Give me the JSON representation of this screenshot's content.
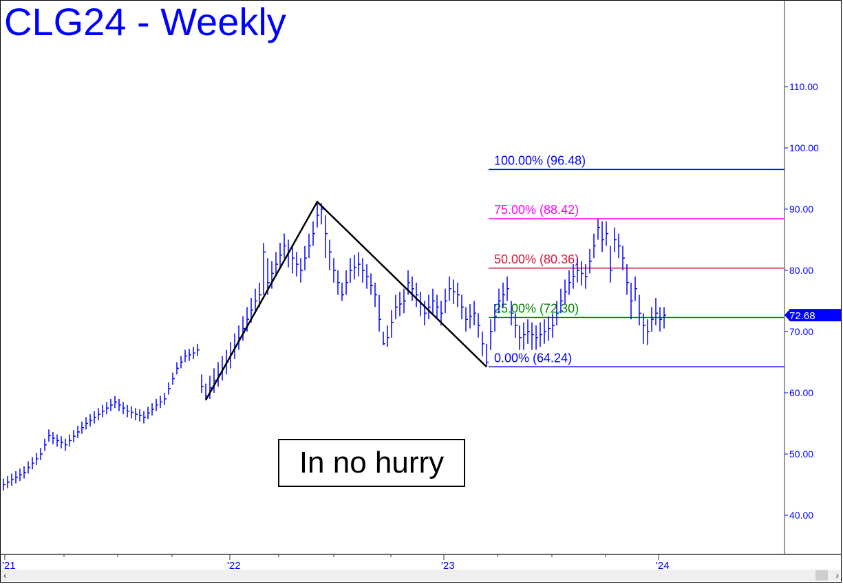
{
  "title": "CLG24 - Weekly",
  "annotation": "In no hurry",
  "chart_data": {
    "type": "ohlc-bar",
    "title": "CLG24 - Weekly",
    "interval": "weekly",
    "ylim": [
      35,
      120
    ],
    "y_ticks": [
      "40.00",
      "50.00",
      "60.00",
      "70.00",
      "80.00",
      "90.00",
      "100.00",
      "110.00"
    ],
    "x_ticks": [
      "'21",
      "'22",
      "'23",
      "'24"
    ],
    "bar_color": "#0000ff",
    "last_price": "72.68",
    "close": [
      45,
      45.4,
      45.8,
      46.2,
      46.6,
      47,
      47.8,
      48.5,
      49.2,
      50,
      51.5,
      53,
      52.6,
      52.2,
      51.9,
      51.5,
      52.2,
      52.9,
      53.6,
      54.3,
      55,
      55.5,
      56,
      56.5,
      57,
      57.5,
      58,
      58.5,
      58,
      57.5,
      57,
      56.8,
      56.5,
      56.3,
      56,
      56.7,
      57.3,
      58,
      58.5,
      59,
      60.7,
      62.3,
      64,
      65,
      66,
      66.2,
      66.5,
      67,
      61,
      59.5,
      60.8,
      62,
      63,
      64,
      65,
      66.3,
      67.7,
      69,
      70.5,
      72,
      73.5,
      75,
      76,
      83,
      78,
      79.5,
      81,
      82.5,
      84,
      83,
      82,
      81,
      80,
      82,
      84,
      86,
      89,
      90,
      86,
      83,
      80,
      78,
      76,
      78,
      80,
      80.5,
      81,
      80,
      79,
      77.5,
      76,
      72,
      68,
      69,
      71.5,
      74,
      74.5,
      75,
      78,
      77,
      76,
      74.5,
      73,
      74,
      75,
      74,
      73,
      75,
      77,
      76.5,
      76,
      74,
      72,
      72.5,
      73,
      71,
      68,
      65,
      70,
      72.5,
      75,
      76,
      77,
      73,
      71,
      69,
      69.5,
      70,
      69.5,
      69,
      69.5,
      70,
      70.5,
      71,
      73,
      75,
      76.5,
      78,
      79,
      80,
      79.5,
      79,
      81.5,
      84,
      87,
      85,
      86,
      80,
      85,
      84,
      82,
      78,
      75,
      77,
      73,
      71,
      70,
      72,
      73,
      72,
      72.68
    ],
    "high": [
      46,
      46.4,
      46.8,
      47.2,
      47.6,
      48,
      48.8,
      49.5,
      50.2,
      51,
      52.5,
      54,
      53.6,
      53.2,
      52.9,
      52.5,
      53.2,
      53.9,
      54.6,
      55.3,
      56,
      56.5,
      57,
      57.5,
      58,
      58.5,
      59,
      59.5,
      59,
      58.5,
      58,
      57.8,
      57.5,
      57.3,
      57,
      57.7,
      58.3,
      59,
      59.5,
      60,
      61.7,
      63.3,
      65,
      66,
      67,
      67.2,
      67.5,
      68,
      63,
      61.5,
      62.8,
      64,
      65,
      66,
      67,
      68.3,
      69.7,
      71,
      72.5,
      74,
      75.5,
      77,
      78,
      84.5,
      82,
      81.5,
      83,
      84.5,
      86,
      85,
      84,
      83,
      82,
      84,
      86,
      88,
      91.2,
      91,
      89,
      85,
      82,
      80,
      78,
      80,
      82,
      82.5,
      83,
      82,
      81,
      79.5,
      78,
      76,
      70,
      71,
      73.5,
      76,
      76.5,
      77,
      80,
      79,
      78,
      76.5,
      75,
      76,
      77,
      76,
      75,
      77,
      79,
      78.5,
      78,
      76,
      74,
      74.5,
      75,
      73,
      70,
      68,
      72,
      74.5,
      77,
      78,
      79,
      75,
      73,
      71,
      71.5,
      72,
      71.5,
      71,
      71.5,
      72,
      72.5,
      73,
      75,
      77,
      78.5,
      80,
      81,
      82,
      81.5,
      81,
      83.5,
      86,
      88.4,
      88,
      88,
      84,
      87,
      86,
      84,
      81,
      78,
      79,
      76,
      73,
      72,
      74,
      75.5,
      74,
      74
    ],
    "low": [
      44,
      44.4,
      44.8,
      45.2,
      45.6,
      46,
      46.8,
      47.5,
      48.2,
      49,
      50.5,
      52,
      51.6,
      51.2,
      50.9,
      50.5,
      51.2,
      51.9,
      52.6,
      53.3,
      54,
      54.5,
      55,
      55.5,
      56,
      56.5,
      57,
      57.5,
      57,
      56.5,
      56,
      55.8,
      55.5,
      55.3,
      55,
      55.7,
      56.3,
      57,
      57.5,
      58,
      59.7,
      61.3,
      63,
      64,
      65,
      65.2,
      65.5,
      66,
      60,
      58.8,
      59,
      60,
      61,
      62,
      63,
      64,
      65.5,
      67,
      68.5,
      70,
      71.5,
      73,
      74,
      76,
      76,
      77,
      79,
      80.5,
      82,
      80.5,
      79.5,
      79,
      78,
      80,
      82,
      84,
      87,
      87.5,
      82,
      80,
      78,
      76,
      75,
      76,
      78,
      78.5,
      79,
      78,
      77,
      76,
      74,
      70,
      67.8,
      67.5,
      69,
      72,
      72.5,
      73,
      76,
      75,
      74,
      72.5,
      71,
      72,
      73,
      72,
      71,
      73,
      75,
      74.5,
      74,
      72,
      70,
      70.5,
      71,
      69,
      66,
      64.24,
      67,
      70,
      73,
      74,
      75,
      71,
      69,
      67,
      67,
      68,
      67,
      67,
      67.5,
      68,
      68.5,
      69,
      71,
      73,
      74.5,
      76,
      77,
      78,
      77.5,
      77,
      79.5,
      82,
      85,
      83,
      84,
      78,
      83,
      82,
      80,
      76,
      72,
      75,
      71,
      68,
      67.8,
      70,
      71,
      70,
      70.5
    ],
    "pattern_line": {
      "color": "#000000",
      "points": [
        {
          "price": 58.8
        },
        {
          "price": 91.2
        },
        {
          "price": 64.24
        }
      ]
    },
    "levels": [
      {
        "label": "100.00% (96.48)",
        "price": 96.48,
        "color": "#0000ff"
      },
      {
        "label": "75.00% (88.42)",
        "price": 88.42,
        "color": "#ff00ff"
      },
      {
        "label": "50.00% (80.36)",
        "price": 80.36,
        "color": "#dc143c"
      },
      {
        "label": "25.00% (72.30)",
        "price": 72.3,
        "color": "#008000"
      },
      {
        "label": "0.00% (64.24)",
        "price": 64.24,
        "color": "#0000ff"
      }
    ]
  },
  "scrollbar": {
    "left_arrow": "‹",
    "right_arrow": "›"
  }
}
